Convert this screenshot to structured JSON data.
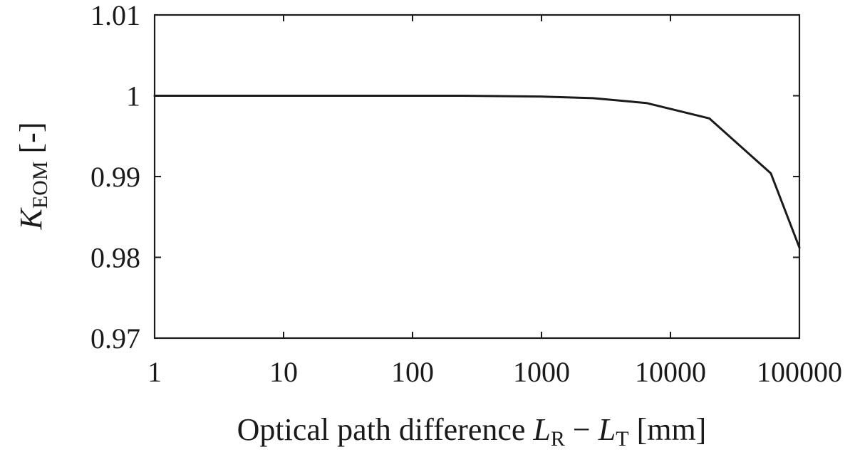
{
  "chart_data": {
    "type": "line",
    "xscale": "log",
    "xlim": [
      1,
      100000
    ],
    "ylim": [
      0.97,
      1.01
    ],
    "grid": false,
    "legend": "none",
    "x_ticks": [
      1,
      10,
      100,
      1000,
      10000,
      100000
    ],
    "x_tick_labels": [
      "1",
      "10",
      "100",
      "1000",
      "10000",
      "100000"
    ],
    "y_ticks": [
      0.97,
      0.98,
      0.99,
      1.0,
      1.01
    ],
    "y_tick_labels": [
      "0.97",
      "0.98",
      "0.99",
      "1",
      "1.01"
    ],
    "xlabel": {
      "prefix": "Optical path difference ",
      "var1": "L",
      "sub1": "R",
      "operator": " − ",
      "var2": "L",
      "sub2": "T",
      "unit": " [mm]"
    },
    "ylabel": {
      "var": "K",
      "sub": "EOM",
      "unit": " [-]"
    },
    "series": [
      {
        "color": "#1a1a1a",
        "x": [
          1,
          10,
          100,
          250,
          1000,
          2500,
          6500,
          20000,
          60000,
          100000
        ],
        "y": [
          1.0,
          1.0,
          1.0,
          1.0,
          0.9999,
          0.9997,
          0.9991,
          0.9972,
          0.9904,
          0.9812
        ]
      }
    ]
  }
}
